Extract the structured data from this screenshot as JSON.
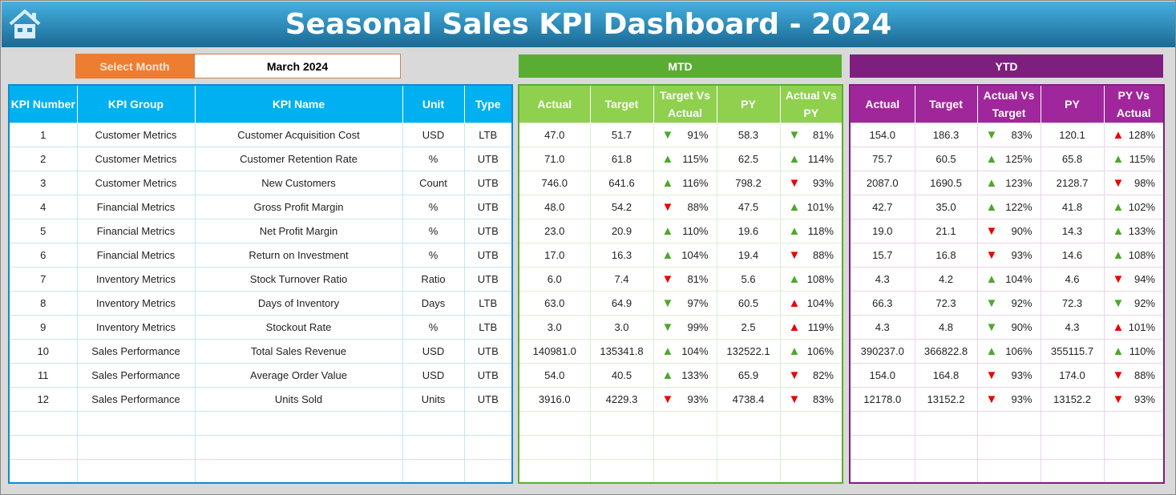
{
  "header": {
    "title": "Seasonal Sales KPI Dashboard - 2024",
    "home_icon": "home-icon"
  },
  "selector": {
    "label": "Select Month",
    "value": "March 2024"
  },
  "sections": {
    "mtd": "MTD",
    "ytd": "YTD"
  },
  "colors": {
    "kpi_header": "#00b0f0",
    "mtd": "#5aad33",
    "mtd_header": "#8fd14f",
    "ytd": "#7e1f7f",
    "ytd_header": "#a0279b",
    "select": "#ed7d31",
    "up_good": "#4ea72e",
    "bad": "#e00000"
  },
  "kpi_columns": [
    "KPI Number",
    "KPI Group",
    "KPI Name",
    "Unit",
    "Type"
  ],
  "mtd_columns": [
    "Actual",
    "Target",
    "Target Vs Actual",
    "PY",
    "Actual Vs PY"
  ],
  "ytd_columns": [
    "Actual",
    "Target",
    "Actual Vs Target",
    "PY",
    "PY Vs Actual"
  ],
  "rows": [
    {
      "num": "1",
      "group": "Customer Metrics",
      "name": "Customer Acquisition Cost",
      "unit": "USD",
      "type": "LTB",
      "mtd": {
        "actual": "47.0",
        "target": "51.7",
        "tva": {
          "dir": "down",
          "color": "green",
          "pct": "91%"
        },
        "py": "58.3",
        "avp": {
          "dir": "down",
          "color": "green",
          "pct": "81%"
        }
      },
      "ytd": {
        "actual": "154.0",
        "target": "186.3",
        "avt": {
          "dir": "down",
          "color": "green",
          "pct": "83%"
        },
        "py": "120.1",
        "pva": {
          "dir": "up",
          "color": "red",
          "pct": "128%"
        }
      }
    },
    {
      "num": "2",
      "group": "Customer Metrics",
      "name": "Customer Retention Rate",
      "unit": "%",
      "type": "UTB",
      "mtd": {
        "actual": "71.0",
        "target": "61.8",
        "tva": {
          "dir": "up",
          "color": "green",
          "pct": "115%"
        },
        "py": "62.5",
        "avp": {
          "dir": "up",
          "color": "green",
          "pct": "114%"
        }
      },
      "ytd": {
        "actual": "75.7",
        "target": "60.5",
        "avt": {
          "dir": "up",
          "color": "green",
          "pct": "125%"
        },
        "py": "65.8",
        "pva": {
          "dir": "up",
          "color": "green",
          "pct": "115%"
        }
      }
    },
    {
      "num": "3",
      "group": "Customer Metrics",
      "name": "New Customers",
      "unit": "Count",
      "type": "UTB",
      "mtd": {
        "actual": "746.0",
        "target": "641.6",
        "tva": {
          "dir": "up",
          "color": "green",
          "pct": "116%"
        },
        "py": "798.2",
        "avp": {
          "dir": "down",
          "color": "red",
          "pct": "93%"
        }
      },
      "ytd": {
        "actual": "2087.0",
        "target": "1690.5",
        "avt": {
          "dir": "up",
          "color": "green",
          "pct": "123%"
        },
        "py": "2128.7",
        "pva": {
          "dir": "down",
          "color": "red",
          "pct": "98%"
        }
      }
    },
    {
      "num": "4",
      "group": "Financial Metrics",
      "name": "Gross Profit Margin",
      "unit": "%",
      "type": "UTB",
      "mtd": {
        "actual": "48.0",
        "target": "54.2",
        "tva": {
          "dir": "down",
          "color": "red",
          "pct": "88%"
        },
        "py": "47.5",
        "avp": {
          "dir": "up",
          "color": "green",
          "pct": "101%"
        }
      },
      "ytd": {
        "actual": "42.7",
        "target": "35.0",
        "avt": {
          "dir": "up",
          "color": "green",
          "pct": "122%"
        },
        "py": "41.8",
        "pva": {
          "dir": "up",
          "color": "green",
          "pct": "102%"
        }
      }
    },
    {
      "num": "5",
      "group": "Financial Metrics",
      "name": "Net Profit Margin",
      "unit": "%",
      "type": "UTB",
      "mtd": {
        "actual": "23.0",
        "target": "20.9",
        "tva": {
          "dir": "up",
          "color": "green",
          "pct": "110%"
        },
        "py": "19.6",
        "avp": {
          "dir": "up",
          "color": "green",
          "pct": "118%"
        }
      },
      "ytd": {
        "actual": "19.0",
        "target": "21.1",
        "avt": {
          "dir": "down",
          "color": "red",
          "pct": "90%"
        },
        "py": "14.3",
        "pva": {
          "dir": "up",
          "color": "green",
          "pct": "133%"
        }
      }
    },
    {
      "num": "6",
      "group": "Financial Metrics",
      "name": "Return on Investment",
      "unit": "%",
      "type": "UTB",
      "mtd": {
        "actual": "17.0",
        "target": "16.3",
        "tva": {
          "dir": "up",
          "color": "green",
          "pct": "104%"
        },
        "py": "19.4",
        "avp": {
          "dir": "down",
          "color": "red",
          "pct": "88%"
        }
      },
      "ytd": {
        "actual": "15.7",
        "target": "16.8",
        "avt": {
          "dir": "down",
          "color": "red",
          "pct": "93%"
        },
        "py": "14.6",
        "pva": {
          "dir": "up",
          "color": "green",
          "pct": "108%"
        }
      }
    },
    {
      "num": "7",
      "group": "Inventory Metrics",
      "name": "Stock Turnover Ratio",
      "unit": "Ratio",
      "type": "UTB",
      "mtd": {
        "actual": "6.0",
        "target": "7.4",
        "tva": {
          "dir": "down",
          "color": "red",
          "pct": "81%"
        },
        "py": "5.6",
        "avp": {
          "dir": "up",
          "color": "green",
          "pct": "108%"
        }
      },
      "ytd": {
        "actual": "4.3",
        "target": "4.2",
        "avt": {
          "dir": "up",
          "color": "green",
          "pct": "104%"
        },
        "py": "4.6",
        "pva": {
          "dir": "down",
          "color": "red",
          "pct": "94%"
        }
      }
    },
    {
      "num": "8",
      "group": "Inventory Metrics",
      "name": "Days of Inventory",
      "unit": "Days",
      "type": "LTB",
      "mtd": {
        "actual": "63.0",
        "target": "64.9",
        "tva": {
          "dir": "down",
          "color": "green",
          "pct": "97%"
        },
        "py": "60.5",
        "avp": {
          "dir": "up",
          "color": "red",
          "pct": "104%"
        }
      },
      "ytd": {
        "actual": "66.3",
        "target": "72.3",
        "avt": {
          "dir": "down",
          "color": "green",
          "pct": "92%"
        },
        "py": "72.3",
        "pva": {
          "dir": "down",
          "color": "green",
          "pct": "92%"
        }
      }
    },
    {
      "num": "9",
      "group": "Inventory Metrics",
      "name": "Stockout Rate",
      "unit": "%",
      "type": "LTB",
      "mtd": {
        "actual": "3.0",
        "target": "3.0",
        "tva": {
          "dir": "down",
          "color": "green",
          "pct": "99%"
        },
        "py": "2.5",
        "avp": {
          "dir": "up",
          "color": "red",
          "pct": "119%"
        }
      },
      "ytd": {
        "actual": "4.3",
        "target": "4.8",
        "avt": {
          "dir": "down",
          "color": "green",
          "pct": "90%"
        },
        "py": "4.3",
        "pva": {
          "dir": "up",
          "color": "red",
          "pct": "101%"
        }
      }
    },
    {
      "num": "10",
      "group": "Sales Performance",
      "name": "Total Sales Revenue",
      "unit": "USD",
      "type": "UTB",
      "mtd": {
        "actual": "140981.0",
        "target": "135341.8",
        "tva": {
          "dir": "up",
          "color": "green",
          "pct": "104%"
        },
        "py": "132522.1",
        "avp": {
          "dir": "up",
          "color": "green",
          "pct": "106%"
        }
      },
      "ytd": {
        "actual": "390237.0",
        "target": "366822.8",
        "avt": {
          "dir": "up",
          "color": "green",
          "pct": "106%"
        },
        "py": "355115.7",
        "pva": {
          "dir": "up",
          "color": "green",
          "pct": "110%"
        }
      }
    },
    {
      "num": "11",
      "group": "Sales Performance",
      "name": "Average Order Value",
      "unit": "USD",
      "type": "UTB",
      "mtd": {
        "actual": "54.0",
        "target": "40.5",
        "tva": {
          "dir": "up",
          "color": "green",
          "pct": "133%"
        },
        "py": "65.9",
        "avp": {
          "dir": "down",
          "color": "red",
          "pct": "82%"
        }
      },
      "ytd": {
        "actual": "154.0",
        "target": "164.8",
        "avt": {
          "dir": "down",
          "color": "red",
          "pct": "93%"
        },
        "py": "174.0",
        "pva": {
          "dir": "down",
          "color": "red",
          "pct": "88%"
        }
      }
    },
    {
      "num": "12",
      "group": "Sales Performance",
      "name": "Units Sold",
      "unit": "Units",
      "type": "UTB",
      "mtd": {
        "actual": "3916.0",
        "target": "4229.3",
        "tva": {
          "dir": "down",
          "color": "red",
          "pct": "93%"
        },
        "py": "4738.4",
        "avp": {
          "dir": "down",
          "color": "red",
          "pct": "83%"
        }
      },
      "ytd": {
        "actual": "12178.0",
        "target": "13152.2",
        "avt": {
          "dir": "down",
          "color": "red",
          "pct": "93%"
        },
        "py": "13152.2",
        "pva": {
          "dir": "down",
          "color": "red",
          "pct": "93%"
        }
      }
    }
  ]
}
